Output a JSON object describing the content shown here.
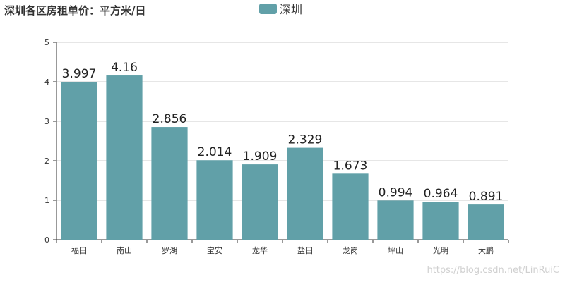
{
  "chart_data": {
    "type": "bar",
    "title": "深圳各区房租单价：平方米/日",
    "xlabel": "",
    "ylabel": "",
    "categories": [
      "福田",
      "南山",
      "罗湖",
      "宝安",
      "龙华",
      "盐田",
      "龙岗",
      "坪山",
      "光明",
      "大鹏"
    ],
    "series": [
      {
        "name": "深圳",
        "color": "#61a0a8",
        "values": [
          3.997,
          4.16,
          2.856,
          2.014,
          1.909,
          2.329,
          1.673,
          0.994,
          0.964,
          0.891
        ],
        "labels": [
          "3.997",
          "4.16",
          "2.856",
          "2.014",
          "1.909",
          "2.329",
          "1.673",
          "0.994",
          "0.964",
          "0.891"
        ]
      }
    ],
    "ylim": [
      0,
      5
    ],
    "yticks": [
      "0",
      "1",
      "2",
      "3",
      "4",
      "5"
    ],
    "grid": true,
    "legend": "top-center"
  },
  "watermark": "https://blog.csdn.net/LinRuiC"
}
